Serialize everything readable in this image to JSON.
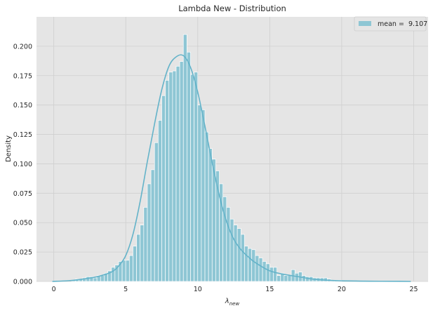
{
  "chart_data": {
    "type": "bar",
    "title": "Lambda New - Distribution",
    "xlabel": "λ",
    "xlabel_subscript": "new",
    "ylabel": "Density",
    "xlim": [
      -1.2,
      26.0
    ],
    "ylim": [
      0,
      0.225
    ],
    "xticks": [
      0,
      5,
      10,
      15,
      20,
      25
    ],
    "yticks": [
      0.0,
      0.025,
      0.05,
      0.075,
      0.1,
      0.125,
      0.15,
      0.175,
      0.2
    ],
    "ytick_labels": [
      "0.000",
      "0.025",
      "0.050",
      "0.075",
      "0.100",
      "0.125",
      "0.150",
      "0.175",
      "0.200"
    ],
    "grid": true,
    "legend_position": "top-right",
    "series": [
      {
        "name": "mean =  9.107",
        "kind": "histogram",
        "bin_start": 1.25,
        "bin_width": 0.25,
        "values": [
          0.001,
          0.002,
          0.002,
          0.003,
          0.004,
          0.004,
          0.003,
          0.005,
          0.005,
          0.007,
          0.009,
          0.012,
          0.014,
          0.017,
          0.018,
          0.018,
          0.022,
          0.03,
          0.04,
          0.048,
          0.063,
          0.083,
          0.095,
          0.118,
          0.137,
          0.158,
          0.171,
          0.178,
          0.179,
          0.183,
          0.187,
          0.21,
          0.195,
          0.176,
          0.178,
          0.15,
          0.146,
          0.127,
          0.113,
          0.104,
          0.094,
          0.083,
          0.072,
          0.063,
          0.053,
          0.048,
          0.045,
          0.04,
          0.03,
          0.028,
          0.027,
          0.022,
          0.02,
          0.017,
          0.015,
          0.012,
          0.012,
          0.005,
          0.007,
          0.005,
          0.005,
          0.01,
          0.007,
          0.008,
          0.005,
          0.004,
          0.004,
          0.003,
          0.003,
          0.003,
          0.003,
          0.002,
          0.001,
          0.001,
          0.001
        ]
      },
      {
        "name": "kde",
        "kind": "line",
        "x": [
          -0.1,
          1,
          2,
          3,
          4,
          4.5,
          5,
          5.5,
          6,
          6.5,
          7,
          7.5,
          8,
          8.5,
          9,
          9.5,
          10,
          10.5,
          11,
          11.5,
          12,
          12.5,
          13,
          13.5,
          14,
          15,
          16,
          17,
          18,
          19,
          20,
          22,
          24,
          24.8
        ],
        "y": [
          0.0,
          0.0006,
          0.002,
          0.004,
          0.008,
          0.013,
          0.022,
          0.04,
          0.068,
          0.102,
          0.134,
          0.163,
          0.183,
          0.191,
          0.192,
          0.182,
          0.161,
          0.132,
          0.101,
          0.073,
          0.051,
          0.036,
          0.027,
          0.021,
          0.016,
          0.009,
          0.006,
          0.004,
          0.002,
          0.001,
          0.0005,
          0.0002,
          0.0001,
          0.0
        ]
      }
    ],
    "colors": {
      "bar_fill": "#8ec6d4",
      "bar_edge": "#ffffff",
      "kde_line": "#64b3c9",
      "plot_background": "#e5e5e5",
      "grid": "#cfcfcf"
    }
  }
}
